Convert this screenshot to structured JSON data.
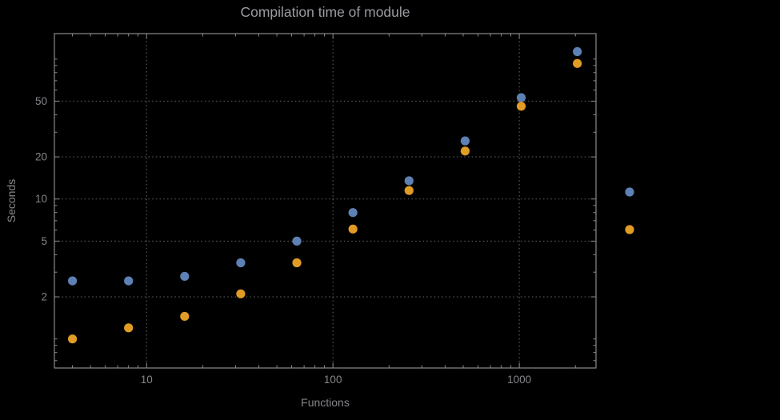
{
  "chart_data": {
    "type": "scatter",
    "title": "Compilation time of module",
    "xlabel": "Functions",
    "ylabel": "Seconds",
    "x_scale": "log",
    "y_scale": "log",
    "xlim": [
      3.2,
      2580
    ],
    "ylim": [
      0.62,
      152
    ],
    "x_ticks": [
      10,
      100,
      1000
    ],
    "y_ticks": [
      2,
      5,
      10,
      20,
      50
    ],
    "grid": "dotted",
    "grid_color": "#606060",
    "frame_color": "#8a8a8a",
    "label_color": "#85858a",
    "series": [
      {
        "name": "series-1",
        "color": "#5E81B5",
        "x": [
          4,
          8,
          16,
          32,
          64,
          128,
          256,
          512,
          1024,
          2048
        ],
        "y": [
          2.6,
          2.6,
          2.8,
          3.5,
          5.0,
          8.0,
          13.5,
          26,
          53,
          113
        ]
      },
      {
        "name": "series-2",
        "color": "#E19C24",
        "x": [
          4,
          8,
          16,
          32,
          64,
          128,
          256,
          512,
          1024,
          2048
        ],
        "y": [
          1.0,
          1.2,
          1.45,
          2.1,
          3.5,
          6.1,
          11.5,
          22,
          46,
          93
        ]
      }
    ]
  },
  "legend": {
    "markers": [
      {
        "name": "legend-marker-1",
        "color": "#5E81B5"
      },
      {
        "name": "legend-marker-2",
        "color": "#E19C24"
      }
    ]
  }
}
